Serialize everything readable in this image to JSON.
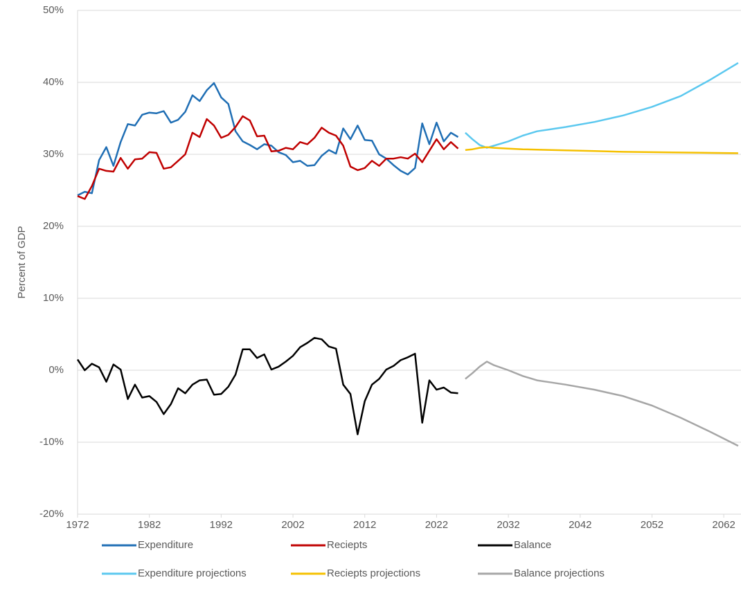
{
  "chart_data": {
    "type": "line",
    "ylabel": "Percent of GDP",
    "xlim": [
      1972,
      2064.4
    ],
    "xticks": [
      1972,
      1982,
      1992,
      2002,
      2012,
      2022,
      2032,
      2042,
      2052,
      2062
    ],
    "ylim": [
      -20,
      50
    ],
    "yticks": [
      {
        "value": -20,
        "label": "-20%"
      },
      {
        "value": -10,
        "label": "-10%"
      },
      {
        "value": 0,
        "label": "0%"
      },
      {
        "value": 10,
        "label": "10%"
      },
      {
        "value": 20,
        "label": "20%"
      },
      {
        "value": 30,
        "label": "30%"
      },
      {
        "value": 40,
        "label": "40%"
      },
      {
        "value": 50,
        "label": "50%"
      }
    ],
    "grid": true,
    "legend": "bottom",
    "series": [
      {
        "name": "Expenditure",
        "color": "#1f6eb4",
        "x": [
          1972,
          1973,
          1974,
          1975,
          1976,
          1977,
          1978,
          1979,
          1980,
          1981,
          1982,
          1983,
          1984,
          1985,
          1986,
          1987,
          1988,
          1989,
          1990,
          1991,
          1992,
          1993,
          1994,
          1995,
          1996,
          1997,
          1998,
          1999,
          2000,
          2001,
          2002,
          2003,
          2004,
          2005,
          2006,
          2007,
          2008,
          2009,
          2010,
          2011,
          2012,
          2013,
          2014,
          2015,
          2016,
          2017,
          2018,
          2019,
          2020,
          2021,
          2022,
          2023,
          2024,
          2025
        ],
        "values": [
          24.3,
          24.8,
          24.6,
          29.2,
          31.0,
          28.4,
          31.7,
          34.2,
          34.0,
          35.5,
          35.8,
          35.7,
          36.0,
          34.4,
          34.8,
          35.9,
          38.2,
          37.4,
          38.9,
          39.9,
          37.9,
          37.0,
          33.2,
          31.8,
          31.3,
          30.7,
          31.4,
          31.2,
          30.3,
          29.9,
          28.9,
          29.1,
          28.4,
          28.5,
          29.8,
          30.6,
          30.1,
          33.6,
          32.1,
          34.0,
          32.0,
          31.9,
          30.0,
          29.4,
          28.5,
          27.7,
          27.2,
          28.1,
          34.3,
          31.4,
          34.4,
          31.8,
          33.0,
          32.4
        ]
      },
      {
        "name": "Reciepts",
        "color": "#c00000",
        "x": [
          1972,
          1973,
          1974,
          1975,
          1976,
          1977,
          1978,
          1979,
          1980,
          1981,
          1982,
          1983,
          1984,
          1985,
          1986,
          1987,
          1988,
          1989,
          1990,
          1991,
          1992,
          1993,
          1994,
          1995,
          1996,
          1997,
          1998,
          1999,
          2000,
          2001,
          2002,
          2003,
          2004,
          2005,
          2006,
          2007,
          2008,
          2009,
          2010,
          2011,
          2012,
          2013,
          2014,
          2015,
          2016,
          2017,
          2018,
          2019,
          2020,
          2021,
          2022,
          2023,
          2024,
          2025
        ],
        "values": [
          24.2,
          23.8,
          25.6,
          28.0,
          27.7,
          27.6,
          29.5,
          28.0,
          29.3,
          29.4,
          30.3,
          30.2,
          28.0,
          28.2,
          29.1,
          30.0,
          33.0,
          32.4,
          34.9,
          34.0,
          32.3,
          32.7,
          33.8,
          35.3,
          34.7,
          32.5,
          32.6,
          30.4,
          30.5,
          30.9,
          30.7,
          31.7,
          31.4,
          32.3,
          33.7,
          33.0,
          32.6,
          31.2,
          28.3,
          27.8,
          28.1,
          29.1,
          28.4,
          29.4,
          29.4,
          29.6,
          29.4,
          30.1,
          28.9,
          30.5,
          32.1,
          30.7,
          31.7,
          30.8
        ]
      },
      {
        "name": "Balance",
        "color": "#000000",
        "x": [
          1972,
          1973,
          1974,
          1975,
          1976,
          1977,
          1978,
          1979,
          1980,
          1981,
          1982,
          1983,
          1984,
          1985,
          1986,
          1987,
          1988,
          1989,
          1990,
          1991,
          1992,
          1993,
          1994,
          1995,
          1996,
          1997,
          1998,
          1999,
          2000,
          2001,
          2002,
          2003,
          2004,
          2005,
          2006,
          2007,
          2008,
          2009,
          2010,
          2011,
          2012,
          2013,
          2014,
          2015,
          2016,
          2017,
          2018,
          2019,
          2020,
          2021,
          2022,
          2023,
          2024,
          2025
        ],
        "values": [
          1.5,
          0.0,
          0.9,
          0.4,
          -1.6,
          0.8,
          0.1,
          -4.0,
          -2.0,
          -3.8,
          -3.6,
          -4.4,
          -6.1,
          -4.7,
          -2.5,
          -3.2,
          -2.0,
          -1.4,
          -1.3,
          -3.4,
          -3.3,
          -2.3,
          -0.6,
          2.9,
          2.9,
          1.7,
          2.2,
          0.1,
          0.5,
          1.2,
          2.0,
          3.2,
          3.8,
          4.5,
          4.3,
          3.3,
          3.0,
          -2.0,
          -3.3,
          -8.9,
          -4.3,
          -2.0,
          -1.2,
          0.1,
          0.6,
          1.4,
          1.8,
          2.3,
          -7.3,
          -1.4,
          -2.7,
          -2.4,
          -3.1,
          -3.2
        ]
      },
      {
        "name": "Expenditure projections",
        "color": "#5bc8ef",
        "x": [
          2026,
          2027,
          2028,
          2029,
          2030,
          2032,
          2034,
          2036,
          2038,
          2040,
          2044,
          2048,
          2052,
          2056,
          2060,
          2064
        ],
        "values": [
          33.0,
          32.1,
          31.3,
          30.9,
          31.2,
          31.8,
          32.6,
          33.2,
          33.5,
          33.8,
          34.5,
          35.4,
          36.6,
          38.1,
          40.3,
          42.7
        ]
      },
      {
        "name": "Reciepts projections",
        "color": "#f5c000",
        "x": [
          2026,
          2027,
          2028,
          2029,
          2030,
          2032,
          2034,
          2036,
          2038,
          2040,
          2044,
          2048,
          2052,
          2056,
          2060,
          2064
        ],
        "values": [
          30.6,
          30.7,
          30.9,
          31.0,
          30.9,
          30.8,
          30.7,
          30.65,
          30.6,
          30.55,
          30.45,
          30.35,
          30.3,
          30.25,
          30.2,
          30.15
        ]
      },
      {
        "name": "Balance projections",
        "color": "#a6a6a6",
        "x": [
          2026,
          2027,
          2028,
          2029,
          2030,
          2032,
          2034,
          2036,
          2038,
          2040,
          2044,
          2048,
          2052,
          2056,
          2060,
          2064
        ],
        "values": [
          -1.2,
          -0.4,
          0.5,
          1.2,
          0.7,
          0.0,
          -0.8,
          -1.4,
          -1.7,
          -2.0,
          -2.7,
          -3.6,
          -4.9,
          -6.6,
          -8.5,
          -10.5
        ]
      }
    ]
  }
}
